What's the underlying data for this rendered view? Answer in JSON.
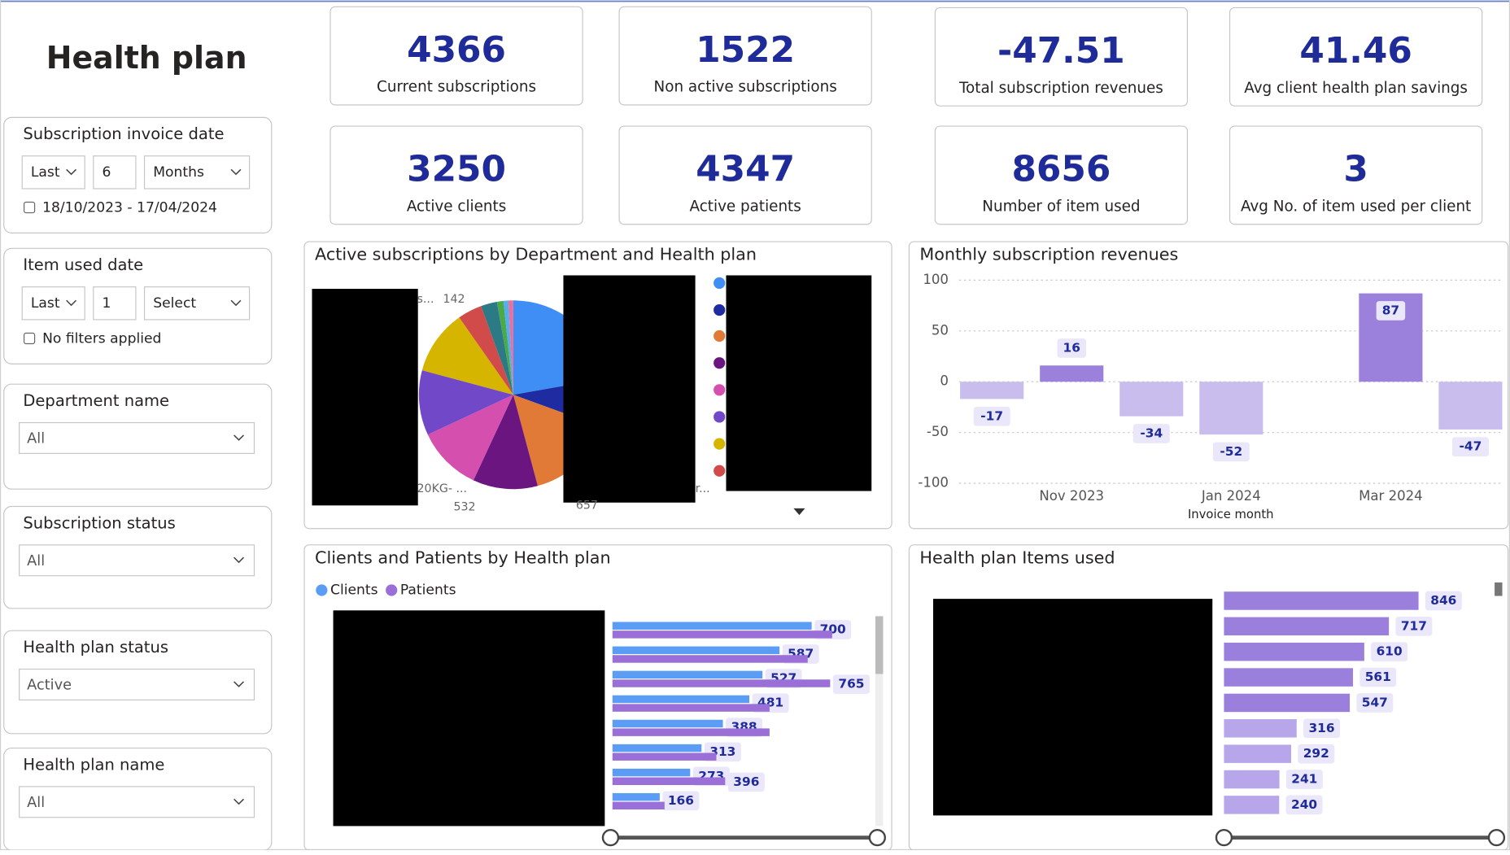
{
  "header": {
    "title": "Health plan"
  },
  "kpis": [
    {
      "value": 4366,
      "label": "Current subscriptions"
    },
    {
      "value": 1522,
      "label": "Non active subscriptions"
    },
    {
      "value": -47.51,
      "label": "Total subscription revenues"
    },
    {
      "value": 41.46,
      "label": "Avg client health plan savings"
    },
    {
      "value": 3250,
      "label": "Active clients"
    },
    {
      "value": 4347,
      "label": "Active patients"
    },
    {
      "value": 8656,
      "label": "Number of item used"
    },
    {
      "value": 3,
      "label": "Avg No. of item used per client"
    }
  ],
  "slicers": [
    {
      "title": "Subscription invoice date",
      "relative": [
        "Last",
        "6",
        "Months"
      ],
      "range": "18/10/2023 - 17/04/2024"
    },
    {
      "title": "Item used date",
      "relative": [
        "Last",
        "1",
        "Select"
      ],
      "range": "No filters applied"
    },
    {
      "title": "Department name",
      "value": "All"
    },
    {
      "title": "Subscription status",
      "value": "All"
    },
    {
      "title": "Health plan status",
      "value": "Active"
    },
    {
      "title": "Health plan name",
      "value": "All"
    }
  ],
  "chart_data": [
    {
      "type": "pie",
      "title": "Active subscriptions by Department and Health plan",
      "labels": [
        "s...",
        "20KG- ...",
        "r..."
      ],
      "values": [
        142,
        532,
        657
      ]
    },
    {
      "type": "bar",
      "title": "Monthly subscription revenues",
      "x_label": "Invoice month",
      "categories": [
        null,
        "Nov 2023",
        null,
        "Jan 2024",
        null,
        "Mar 2024",
        null
      ],
      "values": [
        -17,
        16,
        -34,
        -52,
        null,
        87,
        -47
      ],
      "ylim": [
        -100,
        100
      ],
      "yticks": [
        -100,
        -50,
        0,
        50,
        100
      ],
      "grid": true,
      "positive_color": "#9b80dc",
      "negative_color": "#c9bdee"
    },
    {
      "type": "hbar",
      "title": "Clients and Patients by Health plan",
      "series": [
        {
          "name": "Clients",
          "color": "#5b9cf4",
          "values": [
            700,
            587,
            527,
            481,
            388,
            313,
            273,
            166
          ]
        },
        {
          "name": "Patients",
          "color": "#9a6fd8",
          "values": [
            772,
            686,
            765,
            552,
            552,
            365,
            396,
            183
          ],
          "value_labels": [
            null,
            null,
            "765",
            null,
            null,
            null,
            "396",
            null
          ]
        }
      ],
      "xlim": [
        0,
        1000
      ]
    },
    {
      "type": "hbar",
      "title": "Health plan Items used",
      "values": [
        846,
        717,
        610,
        561,
        547,
        316,
        292,
        241,
        240
      ],
      "colors": [
        "#9a7fdc",
        "#9a7fdc",
        "#9a7fdc",
        "#9a7fdc",
        "#9a7fdc",
        "#b8a6ea",
        "#b8a6ea",
        "#b8a6ea",
        "#b8a6ea"
      ],
      "xlim": [
        0,
        1000
      ]
    }
  ]
}
